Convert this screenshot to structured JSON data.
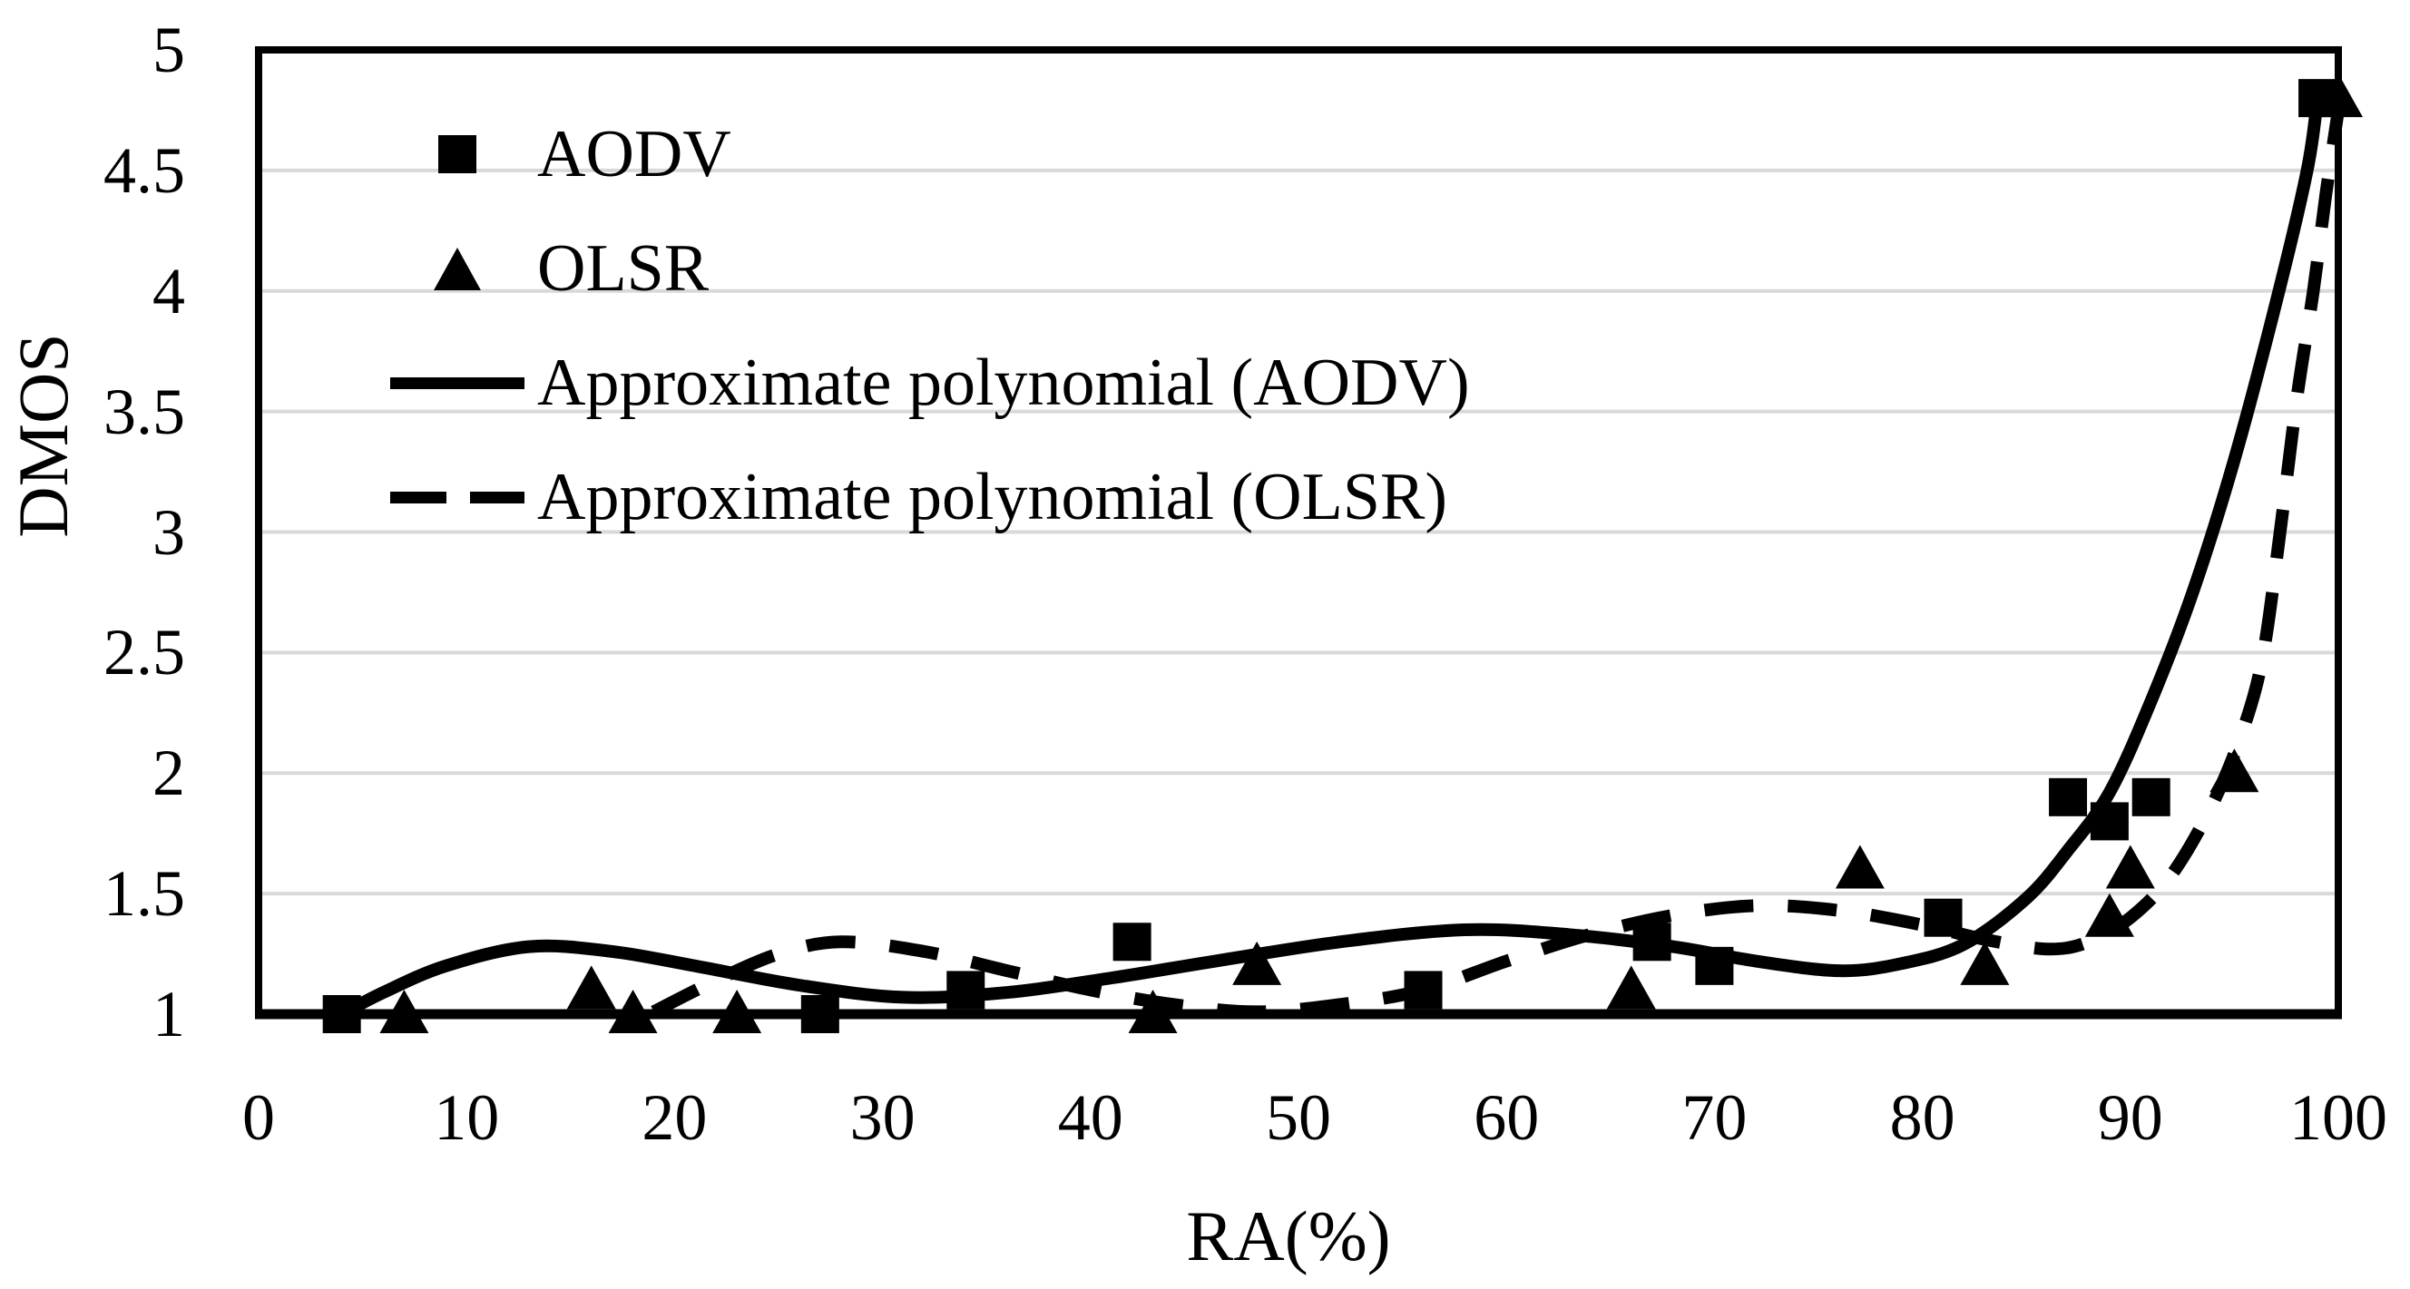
{
  "chart_data": {
    "type": "scatter",
    "title": "",
    "xlabel": "RA(%)",
    "ylabel": "DMOS",
    "xlim": [
      0,
      100
    ],
    "ylim": [
      1,
      5
    ],
    "xticks": [
      0,
      10,
      20,
      30,
      40,
      50,
      60,
      70,
      80,
      90,
      100
    ],
    "yticks": [
      1,
      1.5,
      2,
      2.5,
      3,
      3.5,
      4,
      4.5,
      5
    ],
    "grid": "horizontal gridlines every 0.5, light gray, plot enclosed in black frame",
    "legend_position": "top-left inside plot, no border, vertical list",
    "colors": {
      "foreground": "#000000",
      "gridline": "#d9d9d9",
      "background": "#ffffff"
    },
    "series": [
      {
        "name": "AODV",
        "type": "scatter",
        "marker": "square",
        "points": [
          [
            4,
            1.0
          ],
          [
            27,
            1.0
          ],
          [
            34,
            1.1
          ],
          [
            42,
            1.3
          ],
          [
            56,
            1.1
          ],
          [
            67,
            1.3
          ],
          [
            70,
            1.2
          ],
          [
            81,
            1.4
          ],
          [
            87,
            1.9
          ],
          [
            89,
            1.8
          ],
          [
            91,
            1.9
          ],
          [
            99,
            4.8
          ]
        ]
      },
      {
        "name": "OLSR",
        "type": "scatter",
        "marker": "triangle",
        "points": [
          [
            7,
            1.0
          ],
          [
            16,
            1.1
          ],
          [
            18,
            1.0
          ],
          [
            23,
            1.0
          ],
          [
            43,
            1.0
          ],
          [
            48,
            1.2
          ],
          [
            66,
            1.1
          ],
          [
            77,
            1.6
          ],
          [
            83,
            1.2
          ],
          [
            89,
            1.4
          ],
          [
            90,
            1.6
          ],
          [
            95,
            2.0
          ],
          [
            100,
            4.8
          ]
        ]
      },
      {
        "name": "Approximate polynomial (AODV)",
        "type": "line",
        "style": "solid",
        "points": [
          [
            4,
            1.0
          ],
          [
            6,
            1.09
          ],
          [
            9,
            1.2
          ],
          [
            13,
            1.28
          ],
          [
            17,
            1.26
          ],
          [
            21,
            1.2
          ],
          [
            26,
            1.12
          ],
          [
            31,
            1.07
          ],
          [
            36,
            1.09
          ],
          [
            41,
            1.15
          ],
          [
            46,
            1.22
          ],
          [
            52,
            1.3
          ],
          [
            58,
            1.35
          ],
          [
            63,
            1.33
          ],
          [
            68,
            1.28
          ],
          [
            72,
            1.22
          ],
          [
            76,
            1.18
          ],
          [
            79,
            1.21
          ],
          [
            82,
            1.29
          ],
          [
            85,
            1.48
          ],
          [
            87,
            1.68
          ],
          [
            89,
            1.92
          ],
          [
            91,
            2.3
          ],
          [
            93,
            2.75
          ],
          [
            95,
            3.3
          ],
          [
            97,
            3.95
          ],
          [
            98.5,
            4.5
          ],
          [
            99,
            4.8
          ]
        ]
      },
      {
        "name": "Approximate polynomial (OLSR)",
        "type": "line",
        "style": "dashed",
        "points": [
          [
            19,
            1.01
          ],
          [
            22,
            1.14
          ],
          [
            25,
            1.25
          ],
          [
            28,
            1.3
          ],
          [
            32,
            1.26
          ],
          [
            36,
            1.18
          ],
          [
            40,
            1.1
          ],
          [
            44,
            1.04
          ],
          [
            48,
            1.01
          ],
          [
            52,
            1.04
          ],
          [
            56,
            1.1
          ],
          [
            60,
            1.22
          ],
          [
            64,
            1.33
          ],
          [
            68,
            1.41
          ],
          [
            72,
            1.45
          ],
          [
            76,
            1.43
          ],
          [
            80,
            1.37
          ],
          [
            83,
            1.31
          ],
          [
            86,
            1.27
          ],
          [
            88,
            1.3
          ],
          [
            90,
            1.4
          ],
          [
            92,
            1.58
          ],
          [
            94,
            1.88
          ],
          [
            95.5,
            2.2
          ],
          [
            96.4,
            2.5
          ],
          [
            97.2,
            3.0
          ],
          [
            98,
            3.55
          ],
          [
            98.8,
            4.0
          ],
          [
            99.4,
            4.4
          ],
          [
            100,
            4.75
          ]
        ]
      }
    ]
  }
}
